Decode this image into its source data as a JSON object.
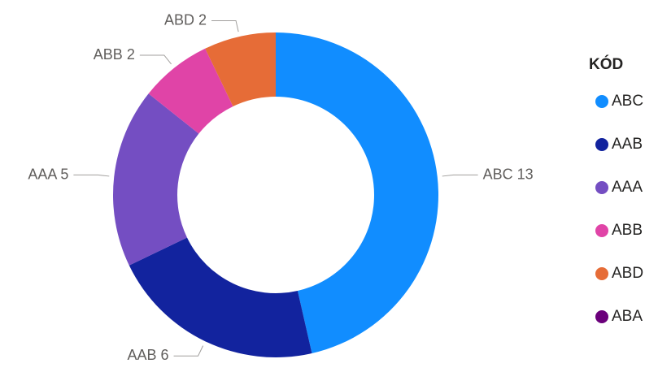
{
  "chart_data": {
    "type": "donut",
    "legend_title": "KÓD",
    "categories": [
      "ABC",
      "AAB",
      "AAA",
      "ABB",
      "ABD",
      "ABA"
    ],
    "values": [
      13,
      6,
      5,
      2,
      2,
      0
    ],
    "colors": [
      "#118DFF",
      "#12239E",
      "#744EC2",
      "#E044A7",
      "#E66C37",
      "#6B007B"
    ],
    "legend": "right"
  }
}
